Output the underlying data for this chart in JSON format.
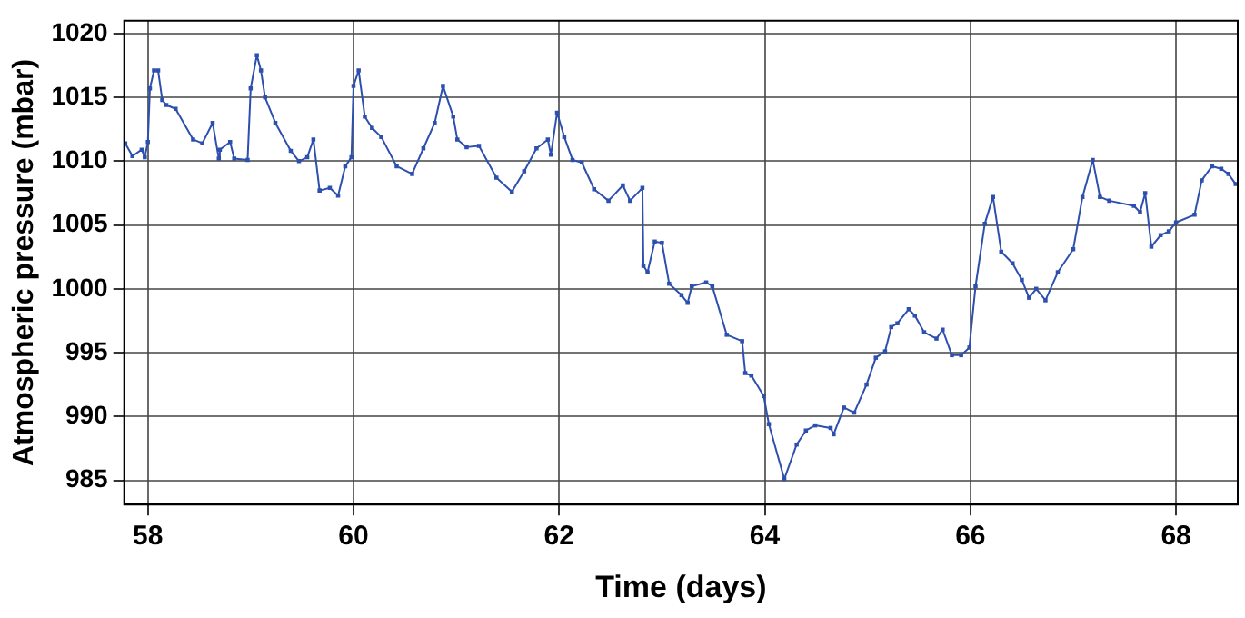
{
  "chart_data": {
    "type": "line",
    "xlabel": "Time (days)",
    "ylabel": "Atmospheric pressure (mbar)",
    "xlim": [
      57.77,
      68.6
    ],
    "xticks": [
      58,
      60,
      62,
      64,
      66,
      68
    ],
    "ylim": [
      983.1,
      1021
    ],
    "yticks": [
      985,
      990,
      995,
      1000,
      1005,
      1010,
      1015,
      1020
    ],
    "grid": true,
    "legend": false,
    "marker": "square",
    "line_style": "solid",
    "series": [
      {
        "color": "#2d4fae",
        "x": [
          57.78,
          57.85,
          57.94,
          57.97,
          58.0,
          58.02,
          58.06,
          58.1,
          58.14,
          58.18,
          58.27,
          58.44,
          58.53,
          58.63,
          58.69,
          58.7,
          58.8,
          58.84,
          58.97,
          59.0,
          59.06,
          59.1,
          59.14,
          59.24,
          59.39,
          59.47,
          59.55,
          59.61,
          59.67,
          59.77,
          59.85,
          59.92,
          59.98,
          60.0,
          60.05,
          60.11,
          60.18,
          60.27,
          60.42,
          60.57,
          60.68,
          60.79,
          60.87,
          60.97,
          61.01,
          61.1,
          61.22,
          61.39,
          61.54,
          61.66,
          61.78,
          61.89,
          61.92,
          61.98,
          62.05,
          62.13,
          62.22,
          62.34,
          62.48,
          62.62,
          62.69,
          62.81,
          62.82,
          62.86,
          62.93,
          63.0,
          63.07,
          63.19,
          63.25,
          63.29,
          63.43,
          63.49,
          63.63,
          63.78,
          63.81,
          63.87,
          63.99,
          64.04,
          64.19,
          64.31,
          64.4,
          64.49,
          64.64,
          64.67,
          64.77,
          64.87,
          64.99,
          65.08,
          65.17,
          65.23,
          65.29,
          65.4,
          65.46,
          65.55,
          65.67,
          65.73,
          65.82,
          65.91,
          65.99,
          66.05,
          66.14,
          66.22,
          66.3,
          66.41,
          66.5,
          66.57,
          66.64,
          66.73,
          66.85,
          67.0,
          67.09,
          67.19,
          67.26,
          67.35,
          67.59,
          67.65,
          67.7,
          67.76,
          67.85,
          67.93,
          68.0,
          68.18,
          68.25,
          68.35,
          68.44,
          68.51,
          68.58
        ],
        "values": [
          1011.4,
          1010.4,
          1010.9,
          1010.3,
          1011.5,
          1015.7,
          1017.1,
          1017.1,
          1014.8,
          1014.4,
          1014.1,
          1011.7,
          1011.4,
          1013.0,
          1010.2,
          1010.9,
          1011.5,
          1010.2,
          1010.1,
          1015.7,
          1018.3,
          1017.1,
          1015.0,
          1013.0,
          1010.8,
          1010.0,
          1010.3,
          1011.7,
          1007.7,
          1007.9,
          1007.3,
          1009.6,
          1010.3,
          1015.9,
          1017.1,
          1013.5,
          1012.6,
          1011.9,
          1009.6,
          1009.0,
          1011.0,
          1013.0,
          1015.9,
          1013.5,
          1011.7,
          1011.1,
          1011.2,
          1008.7,
          1007.6,
          1009.2,
          1011.0,
          1011.7,
          1010.5,
          1013.8,
          1011.9,
          1010.1,
          1009.9,
          1007.8,
          1006.9,
          1008.1,
          1006.9,
          1007.9,
          1001.8,
          1001.3,
          1003.7,
          1003.6,
          1000.4,
          999.5,
          998.9,
          1000.2,
          1000.5,
          1000.2,
          996.4,
          995.9,
          993.4,
          993.2,
          991.6,
          989.4,
          985.1,
          987.8,
          988.9,
          989.3,
          989.1,
          988.6,
          990.7,
          990.3,
          992.5,
          994.6,
          995.1,
          997.0,
          997.3,
          998.4,
          997.9,
          996.6,
          996.1,
          996.8,
          994.8,
          994.8,
          995.4,
          1000.2,
          1005.1,
          1007.2,
          1002.9,
          1002.0,
          1000.7,
          999.3,
          1000.0,
          999.1,
          1001.3,
          1003.1,
          1007.2,
          1010.1,
          1007.2,
          1006.9,
          1006.5,
          1006.0,
          1007.5,
          1003.3,
          1004.2,
          1004.5,
          1005.2,
          1005.8,
          1008.5,
          1009.6,
          1009.4,
          1009.0,
          1008.2
        ]
      }
    ]
  }
}
